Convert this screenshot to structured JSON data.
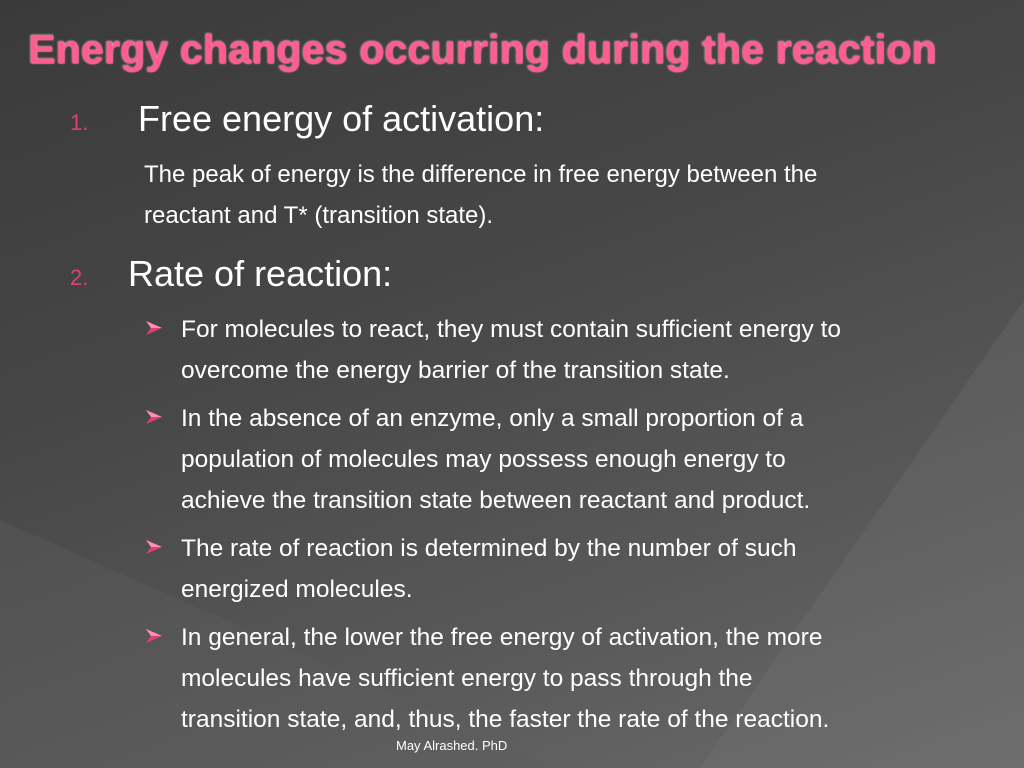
{
  "slide": {
    "title": "Energy changes occurring during the reaction",
    "section1": {
      "number": "1.",
      "heading": "Free energy of activation:",
      "body_line1": "The peak of energy is the difference in free energy between the",
      "body_line2": "reactant and T* (transition state)."
    },
    "section2": {
      "number": "2.",
      "heading": "Rate of reaction:",
      "bullets": [
        {
          "line1": " For molecules to react, they must contain sufficient energy to",
          "line2": "overcome the energy barrier of the transition state."
        },
        {
          "line1": "In the absence of an enzyme, only a small proportion of a",
          "line2": "population of molecules may possess enough energy to",
          "line3": "achieve the transition state between reactant and product."
        },
        {
          "line1": "The rate of reaction is determined by the number of such",
          "line2": "energized molecules."
        },
        {
          "line1": "In general, the lower the free energy of activation, the more",
          "line2": "molecules have sufficient energy to pass through the",
          "line3": "transition state, and, thus, the faster the rate of the reaction."
        }
      ]
    },
    "footer": "May Alrashed. PhD",
    "colors": {
      "title": "#ff5c8f",
      "number": "#e0407a",
      "arrow": "#e0407a",
      "text": "#ffffff"
    },
    "icons": {
      "bullet": "arrow-bullet-icon"
    }
  }
}
